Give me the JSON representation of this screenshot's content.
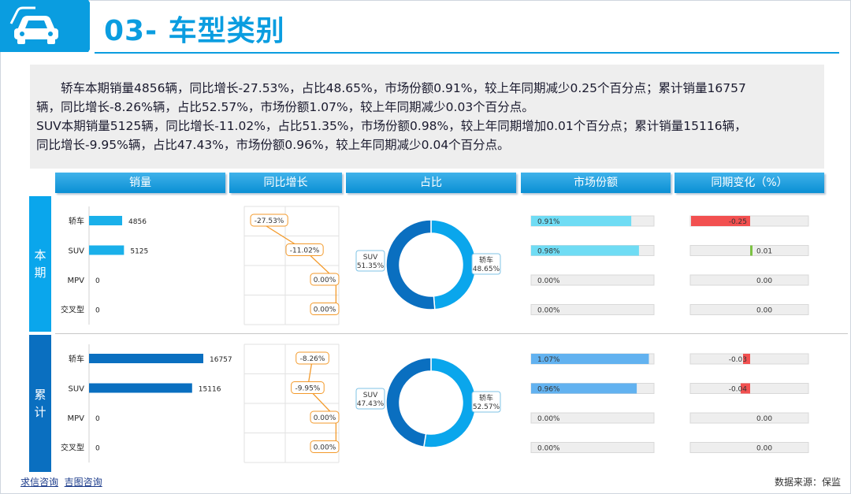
{
  "page": {
    "title": "03- 车型类别"
  },
  "summary": [
    "　　轿车本期销量4856辆，同比增长-27.53%，占比48.65%，市场份额0.91%，较上年同期减少0.25个百分点；累计销量16757",
    "辆，同比增长-8.26%辆，占比52.57%，市场份额1.07%，较上年同期减少0.03个百分点。",
    "SUV本期销量5125辆，同比增长-11.02%，占比51.35%，市场份额0.98%，较上年同期增加0.01个百分点；累计销量15116辆，",
    "同比增长-9.95%辆，占比47.43%，市场份额0.96%，较上年同期减少0.04个百分点。"
  ],
  "columns": [
    "销量",
    "同比增长",
    "占比",
    "市场份额",
    "同期变化（%）"
  ],
  "sections": [
    {
      "label": "本期",
      "label_chars": [
        "本",
        "期"
      ]
    },
    {
      "label": "累计",
      "label_chars": [
        "累",
        "计"
      ]
    }
  ],
  "chart_data": [
    {
      "type": "bar",
      "section": "本期",
      "metric": "销量",
      "categories": [
        "轿车",
        "SUV",
        "MPV",
        "交叉型"
      ],
      "values": [
        4856,
        5125,
        0,
        0
      ],
      "value_labels": [
        "4856",
        "5125",
        "0",
        "0"
      ],
      "color": "#1ab0ea"
    },
    {
      "type": "line",
      "section": "本期",
      "metric": "同比增长",
      "categories": [
        "轿车",
        "SUV",
        "MPV",
        "交叉型"
      ],
      "values": [
        -27.53,
        -11.02,
        0.0,
        0.0
      ],
      "value_labels": [
        "-27.53%",
        "-11.02%",
        "0.00%",
        "0.00%"
      ],
      "color": "#f39a2b"
    },
    {
      "type": "pie",
      "section": "本期",
      "metric": "占比",
      "donut": true,
      "slices": [
        {
          "label": "轿车",
          "value": 48.65,
          "value_label": "48.65%"
        },
        {
          "label": "SUV",
          "value": 51.35,
          "value_label": "51.35%"
        }
      ],
      "colors": [
        "#0aa6ec",
        "#0a6fc0"
      ]
    },
    {
      "type": "bar",
      "section": "本期",
      "metric": "市场份额",
      "categories": [
        "轿车",
        "SUV",
        "MPV",
        "交叉型"
      ],
      "values": [
        0.91,
        0.98,
        0.0,
        0.0
      ],
      "value_labels": [
        "0.91%",
        "0.98%",
        "0.00%",
        "0.00%"
      ],
      "color": "#6fdcf4"
    },
    {
      "type": "bar",
      "section": "本期",
      "metric": "同期变化（%）",
      "categories": [
        "轿车",
        "SUV",
        "MPV",
        "交叉型"
      ],
      "values": [
        -0.25,
        0.01,
        0.0,
        0.0
      ],
      "value_labels": [
        "-0.25",
        "0.01",
        "0.00",
        "0.00"
      ],
      "colors": {
        "negative": "#f25050",
        "positive": "#7cc243"
      }
    },
    {
      "type": "bar",
      "section": "累计",
      "metric": "销量",
      "categories": [
        "轿车",
        "SUV",
        "MPV",
        "交叉型"
      ],
      "values": [
        16757,
        15116,
        0,
        0
      ],
      "value_labels": [
        "16757",
        "15116",
        "0",
        "0"
      ],
      "color": "#0a6fc0"
    },
    {
      "type": "line",
      "section": "累计",
      "metric": "同比增长",
      "categories": [
        "轿车",
        "SUV",
        "MPV",
        "交叉型"
      ],
      "values": [
        -8.26,
        -9.95,
        0.0,
        0.0
      ],
      "value_labels": [
        "-8.26%",
        "-9.95%",
        "0.00%",
        "0.00%"
      ],
      "color": "#f39a2b"
    },
    {
      "type": "pie",
      "section": "累计",
      "metric": "占比",
      "donut": true,
      "slices": [
        {
          "label": "轿车",
          "value": 52.57,
          "value_label": "52.57%"
        },
        {
          "label": "SUV",
          "value": 47.43,
          "value_label": "47.43%"
        }
      ],
      "colors": [
        "#0aa6ec",
        "#0a6fc0"
      ]
    },
    {
      "type": "bar",
      "section": "累计",
      "metric": "市场份额",
      "categories": [
        "轿车",
        "SUV",
        "MPV",
        "交叉型"
      ],
      "values": [
        1.07,
        0.96,
        0.0,
        0.0
      ],
      "value_labels": [
        "1.07%",
        "0.96%",
        "0.00%",
        "0.00%"
      ],
      "color": "#62b2f0"
    },
    {
      "type": "bar",
      "section": "累计",
      "metric": "同期变化（%）",
      "categories": [
        "轿车",
        "SUV",
        "MPV",
        "交叉型"
      ],
      "values": [
        -0.03,
        -0.04,
        0.0,
        0.0
      ],
      "value_labels": [
        "-0.03",
        "-0.04",
        "0.00",
        "0.00"
      ],
      "colors": {
        "negative": "#f25050",
        "positive": "#7cc243"
      }
    }
  ],
  "footer": {
    "links": [
      "求信咨询",
      "吉图咨询"
    ],
    "source": "数据来源：保监"
  },
  "colors": {
    "accent": "#0a9de0",
    "band_top": "#0aa6ec",
    "band_bottom": "#0a6fc0"
  }
}
